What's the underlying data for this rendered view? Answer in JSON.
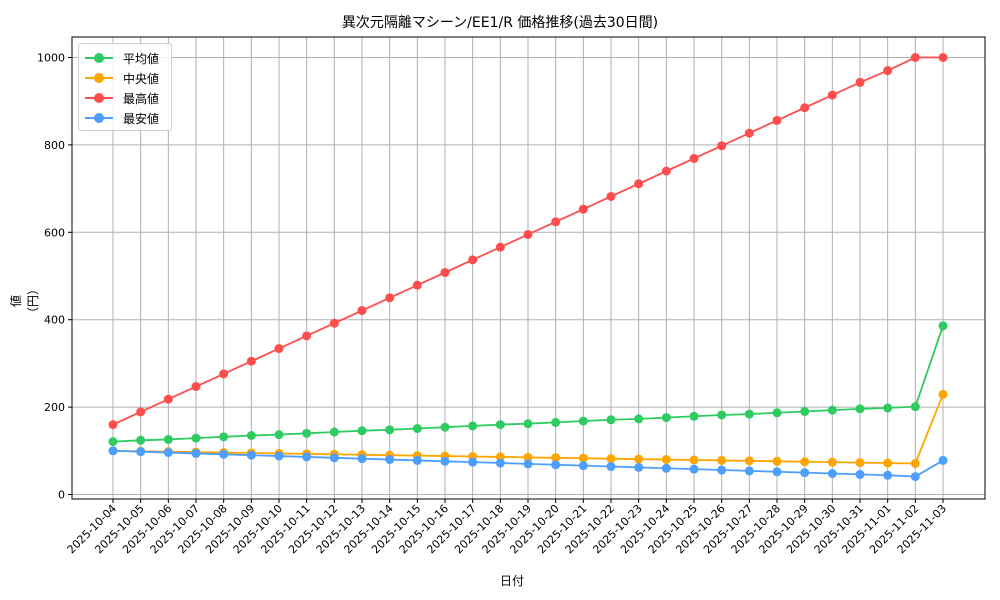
{
  "chart_data": {
    "type": "line",
    "title": "異次元隔離マシーン/EE1/R 価格推移(過去30日間)",
    "xlabel": "日付",
    "ylabel": "値（円）",
    "ylim": [
      0,
      1040
    ],
    "yticks": [
      0,
      200,
      400,
      600,
      800,
      1000
    ],
    "grid": true,
    "legend_position": "upper left",
    "categories": [
      "2025-10-04",
      "2025-10-05",
      "2025-10-06",
      "2025-10-07",
      "2025-10-08",
      "2025-10-09",
      "2025-10-10",
      "2025-10-11",
      "2025-10-12",
      "2025-10-13",
      "2025-10-14",
      "2025-10-15",
      "2025-10-16",
      "2025-10-17",
      "2025-10-18",
      "2025-10-19",
      "2025-10-20",
      "2025-10-21",
      "2025-10-22",
      "2025-10-23",
      "2025-10-24",
      "2025-10-25",
      "2025-10-26",
      "2025-10-27",
      "2025-10-28",
      "2025-10-29",
      "2025-10-30",
      "2025-10-31",
      "2025-11-01",
      "2025-11-02",
      "2025-11-03"
    ],
    "series": [
      {
        "name": "平均値",
        "color": "#2ecc60",
        "values": [
          121,
          124,
          126,
          129,
          132,
          135,
          137,
          140,
          143,
          146,
          148,
          151,
          154,
          157,
          160,
          162,
          165,
          168,
          171,
          173,
          176,
          179,
          182,
          184,
          187,
          190,
          193,
          196,
          198,
          201,
          386
        ]
      },
      {
        "name": "中央値",
        "color": "#ffa500",
        "values": [
          100,
          99,
          98,
          97,
          96,
          95,
          94,
          93,
          92,
          91,
          90,
          89,
          88,
          87,
          86,
          85,
          84,
          83,
          82,
          81,
          80,
          79,
          78,
          77,
          76,
          75,
          74,
          73,
          72,
          71,
          229
        ]
      },
      {
        "name": "最高値",
        "color": "#ff4d4d",
        "values": [
          160,
          189,
          218,
          247,
          276,
          305,
          334,
          363,
          392,
          421,
          450,
          479,
          508,
          537,
          566,
          595,
          624,
          653,
          682,
          711,
          740,
          769,
          798,
          827,
          856,
          885,
          914,
          943,
          970,
          1000,
          1000
        ]
      },
      {
        "name": "最安値",
        "color": "#4d9fff",
        "values": [
          100,
          98,
          96,
          94,
          92,
          90,
          88,
          86,
          84,
          82,
          80,
          78,
          76,
          74,
          72,
          70,
          68,
          66,
          64,
          62,
          60,
          58,
          56,
          54,
          52,
          50,
          48,
          46,
          44,
          41,
          78
        ]
      }
    ]
  }
}
